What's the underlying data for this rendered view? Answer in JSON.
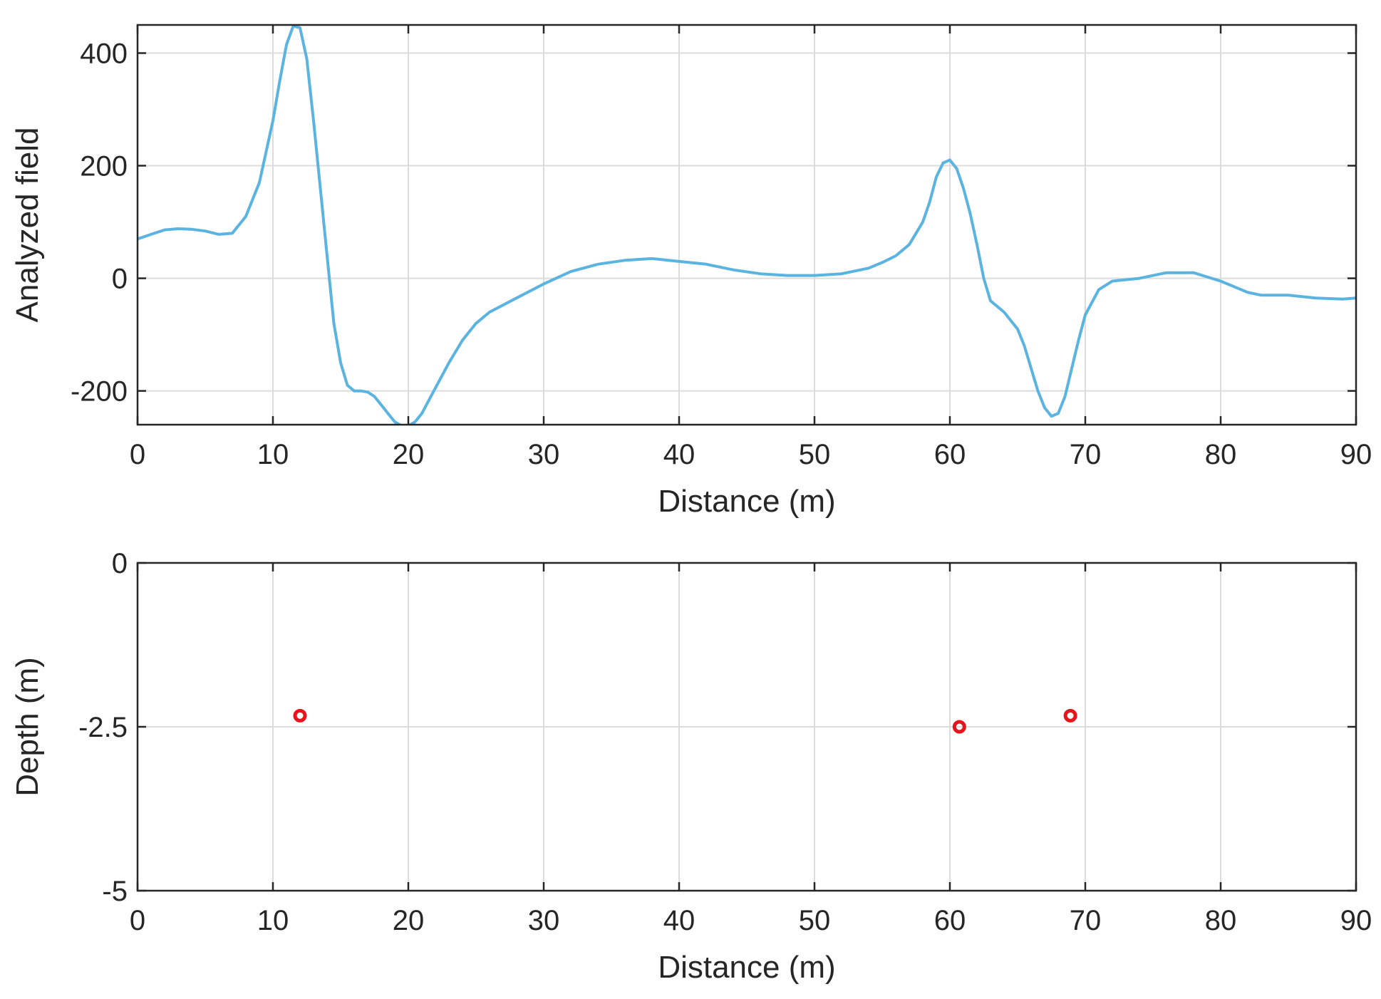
{
  "chart_data": [
    {
      "type": "line",
      "xlabel": "Distance (m)",
      "ylabel": "Analyzed field",
      "xlim": [
        0,
        90
      ],
      "ylim": [
        -260,
        450
      ],
      "xticks": [
        0,
        10,
        20,
        30,
        40,
        50,
        60,
        70,
        80,
        90
      ],
      "yticks": [
        -200,
        0,
        200,
        400
      ],
      "ytick_labels": [
        "-200",
        "0",
        "200",
        "400"
      ],
      "grid": true,
      "line_color": "#5bb3e0",
      "series": [
        {
          "x": [
            0,
            1,
            2,
            3,
            4,
            5,
            6,
            7,
            8,
            9,
            10,
            10.5,
            11,
            11.5,
            12,
            12.5,
            13,
            13.5,
            14,
            14.5,
            15,
            15.5,
            16,
            16.5,
            17,
            17.5,
            18,
            18.5,
            19,
            19.5,
            20,
            20.5,
            21,
            22,
            23,
            24,
            25,
            26,
            28,
            30,
            32,
            34,
            36,
            38,
            40,
            42,
            44,
            46,
            48,
            50,
            52,
            54,
            55,
            56,
            57,
            58,
            58.5,
            59,
            59.5,
            60,
            60.5,
            61,
            61.5,
            62,
            62.5,
            63,
            64,
            65,
            65.5,
            66,
            66.5,
            67,
            67.5,
            68,
            68.5,
            69,
            69.5,
            70,
            71,
            72,
            74,
            76,
            78,
            80,
            82,
            83,
            85,
            87,
            89,
            90
          ],
          "y": [
            70,
            78,
            86,
            88,
            87,
            84,
            78,
            80,
            110,
            170,
            280,
            350,
            415,
            448,
            445,
            390,
            280,
            160,
            40,
            -80,
            -150,
            -190,
            -200,
            -200,
            -202,
            -210,
            -225,
            -240,
            -255,
            -262,
            -262,
            -255,
            -240,
            -195,
            -150,
            -110,
            -80,
            -60,
            -35,
            -10,
            12,
            25,
            32,
            35,
            30,
            25,
            15,
            8,
            5,
            5,
            8,
            18,
            28,
            40,
            60,
            100,
            135,
            180,
            205,
            210,
            195,
            160,
            115,
            60,
            0,
            -40,
            -60,
            -90,
            -120,
            -160,
            -200,
            -230,
            -245,
            -240,
            -210,
            -160,
            -110,
            -65,
            -20,
            -5,
            0,
            10,
            10,
            -5,
            -25,
            -30,
            -30,
            -35,
            -37,
            -35
          ]
        }
      ]
    },
    {
      "type": "scatter",
      "xlabel": "Distance (m)",
      "ylabel": "Depth (m)",
      "xlim": [
        0,
        90
      ],
      "ylim": [
        -5,
        0
      ],
      "xticks": [
        0,
        10,
        20,
        30,
        40,
        50,
        60,
        70,
        80,
        90
      ],
      "yticks": [
        -5,
        -2.5,
        0
      ],
      "ytick_labels": [
        "-5",
        "-2.5",
        "0"
      ],
      "grid": true,
      "marker_color": "#e8141c",
      "series": [
        {
          "x": [
            12,
            60.7,
            68.9
          ],
          "y": [
            -2.33,
            -2.5,
            -2.33
          ]
        }
      ]
    }
  ]
}
